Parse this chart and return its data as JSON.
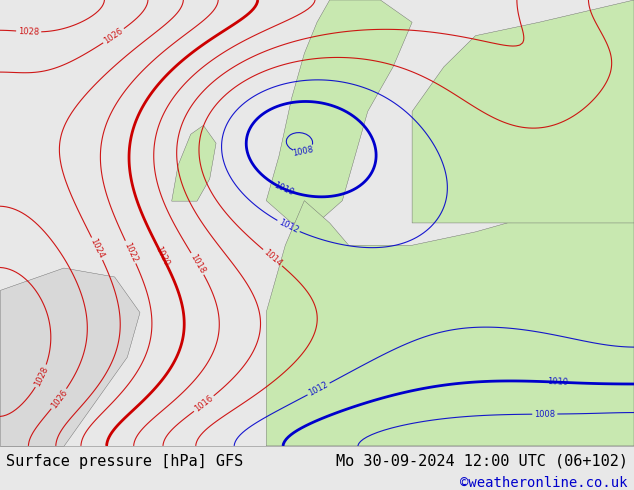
{
  "title_left": "Surface pressure [hPa] GFS",
  "title_right": "Mo 30-09-2024 12:00 UTC (06+102)",
  "credit": "©weatheronline.co.uk",
  "bg_color": "#e8e8e8",
  "map_bg_ocean": "#d0d8f0",
  "map_bg_land_green": "#c8e8b0",
  "map_bg_land_gray": "#d8d8d8",
  "contour_color_low": "#0000cc",
  "contour_color_high": "#cc0000",
  "contour_color_thick": "#000000",
  "footer_bg": "#ffffff",
  "footer_text_color": "#000000",
  "credit_color": "#0000cc",
  "font_size_footer": 11,
  "font_size_credit": 10
}
